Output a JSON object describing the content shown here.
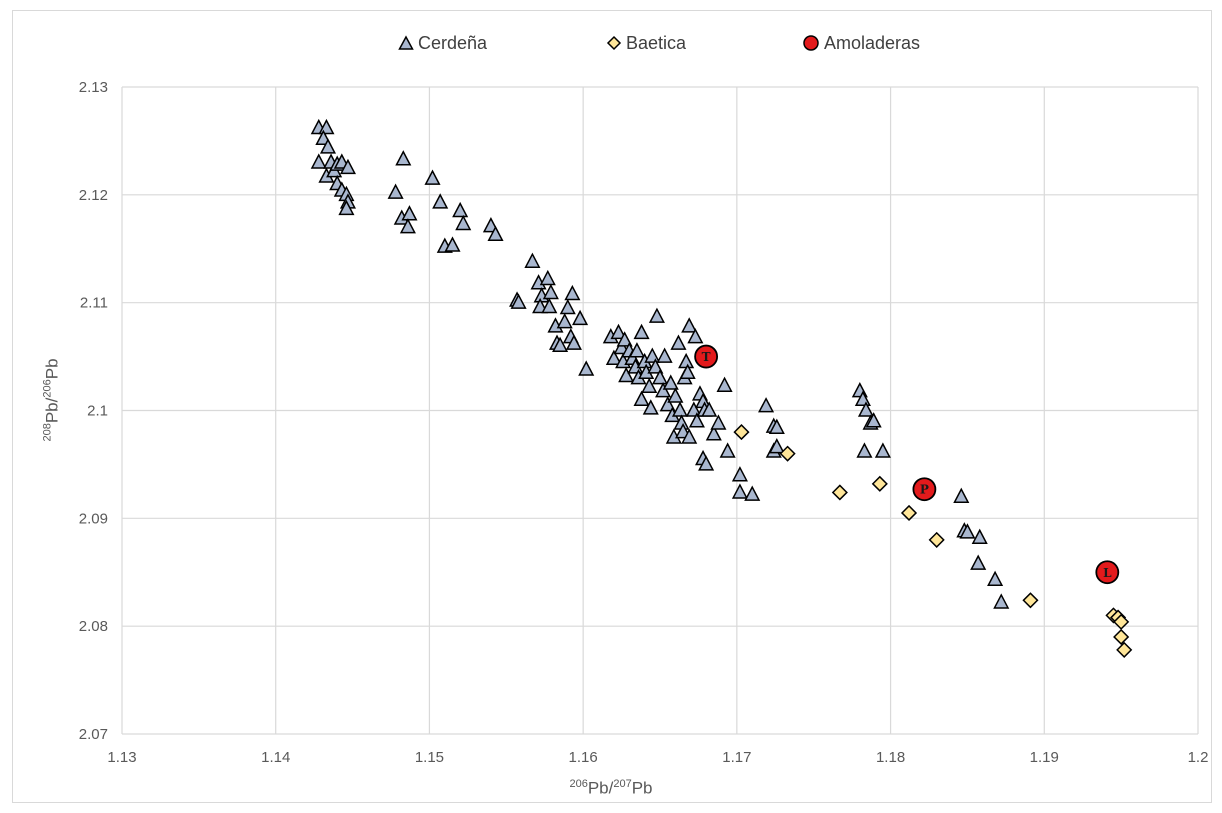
{
  "chart_data": {
    "type": "scatter",
    "title": "",
    "xlabel": {
      "sup1": "206",
      "base1": "Pb/",
      "sup2": "207",
      "base2": "Pb"
    },
    "ylabel": {
      "sup1": "208",
      "base1": "Pb/",
      "sup2": "206",
      "base2": "Pb"
    },
    "xlim": [
      1.13,
      1.2
    ],
    "ylim": [
      2.07,
      2.13
    ],
    "x_ticks": [
      "1.13",
      "1.14",
      "1.15",
      "1.16",
      "1.17",
      "1.18",
      "1.19",
      "1.2"
    ],
    "y_ticks": [
      "2.07",
      "2.08",
      "2.09",
      "2.1",
      "2.11",
      "2.12",
      "2.13"
    ],
    "grid": true,
    "legend_position": "top",
    "series": [
      {
        "name": "Cerdeña",
        "marker": "triangle",
        "color": "#a9b7cf",
        "points": [
          [
            1.1428,
            2.1262
          ],
          [
            1.1433,
            2.1262
          ],
          [
            1.1431,
            2.1252
          ],
          [
            1.1434,
            2.1244
          ],
          [
            1.1428,
            2.123
          ],
          [
            1.1436,
            2.123
          ],
          [
            1.1433,
            2.1217
          ],
          [
            1.1438,
            2.1222
          ],
          [
            1.144,
            2.1228
          ],
          [
            1.1443,
            2.123
          ],
          [
            1.1447,
            2.1225
          ],
          [
            1.144,
            2.121
          ],
          [
            1.1443,
            2.1204
          ],
          [
            1.1446,
            2.12
          ],
          [
            1.1447,
            2.1193
          ],
          [
            1.1446,
            2.1187
          ],
          [
            1.1483,
            2.1233
          ],
          [
            1.1478,
            2.1202
          ],
          [
            1.1482,
            2.1178
          ],
          [
            1.1487,
            2.1182
          ],
          [
            1.1486,
            2.117
          ],
          [
            1.1502,
            2.1215
          ],
          [
            1.1507,
            2.1193
          ],
          [
            1.151,
            2.1152
          ],
          [
            1.1515,
            2.1153
          ],
          [
            1.152,
            2.1185
          ],
          [
            1.1522,
            2.1173
          ],
          [
            1.154,
            2.1171
          ],
          [
            1.1543,
            2.1163
          ],
          [
            1.1557,
            2.1102
          ],
          [
            1.1558,
            2.11
          ],
          [
            1.1567,
            2.1138
          ],
          [
            1.1571,
            2.1118
          ],
          [
            1.1573,
            2.1106
          ],
          [
            1.1572,
            2.1096
          ],
          [
            1.1577,
            2.1122
          ],
          [
            1.1579,
            2.1109
          ],
          [
            1.1578,
            2.1096
          ],
          [
            1.1582,
            2.1078
          ],
          [
            1.1583,
            2.1062
          ],
          [
            1.1585,
            2.106
          ],
          [
            1.159,
            2.1095
          ],
          [
            1.1588,
            2.1082
          ],
          [
            1.1593,
            2.1108
          ],
          [
            1.1592,
            2.1068
          ],
          [
            1.1594,
            2.1062
          ],
          [
            1.1598,
            2.1085
          ],
          [
            1.1602,
            2.1038
          ],
          [
            1.1618,
            2.1068
          ],
          [
            1.162,
            2.1048
          ],
          [
            1.1623,
            2.1072
          ],
          [
            1.1625,
            2.1058
          ],
          [
            1.1627,
            2.1065
          ],
          [
            1.1626,
            2.1045
          ],
          [
            1.1628,
            2.1032
          ],
          [
            1.163,
            2.1055
          ],
          [
            1.1632,
            2.1048
          ],
          [
            1.1634,
            2.104
          ],
          [
            1.1636,
            2.103
          ],
          [
            1.1638,
            2.1072
          ],
          [
            1.1635,
            2.1055
          ],
          [
            1.164,
            2.1045
          ],
          [
            1.1641,
            2.1035
          ],
          [
            1.1638,
            2.101
          ],
          [
            1.1643,
            2.1022
          ],
          [
            1.1645,
            2.105
          ],
          [
            1.1647,
            2.104
          ],
          [
            1.1644,
            2.1002
          ],
          [
            1.1648,
            2.1087
          ],
          [
            1.165,
            2.103
          ],
          [
            1.1652,
            2.1018
          ],
          [
            1.1653,
            2.105
          ],
          [
            1.1655,
            2.1005
          ],
          [
            1.1657,
            2.1025
          ],
          [
            1.1658,
            2.0995
          ],
          [
            1.166,
            2.1013
          ],
          [
            1.1659,
            2.0975
          ],
          [
            1.1662,
            2.1062
          ],
          [
            1.1663,
            2.1
          ],
          [
            1.1664,
            2.0988
          ],
          [
            1.1666,
            2.103
          ],
          [
            1.1665,
            2.098
          ],
          [
            1.1667,
            2.1045
          ],
          [
            1.1668,
            2.1035
          ],
          [
            1.1669,
            2.1078
          ],
          [
            1.1669,
            2.0975
          ],
          [
            1.1672,
            2.1
          ],
          [
            1.1673,
            2.1068
          ],
          [
            1.1674,
            2.099
          ],
          [
            1.1676,
            2.1015
          ],
          [
            1.1678,
            2.1008
          ],
          [
            1.1679,
            2.1
          ],
          [
            1.1678,
            2.0955
          ],
          [
            1.168,
            2.095
          ],
          [
            1.1682,
            2.1
          ],
          [
            1.1685,
            2.0978
          ],
          [
            1.1688,
            2.0988
          ],
          [
            1.1692,
            2.1023
          ],
          [
            1.1694,
            2.0962
          ],
          [
            1.1702,
            2.094
          ],
          [
            1.1702,
            2.0924
          ],
          [
            1.171,
            2.0922
          ],
          [
            1.1719,
            2.1004
          ],
          [
            1.1724,
            2.0985
          ],
          [
            1.1726,
            2.0984
          ],
          [
            1.1724,
            2.0962
          ],
          [
            1.1726,
            2.0966
          ],
          [
            1.178,
            2.1018
          ],
          [
            1.1782,
            2.101
          ],
          [
            1.1784,
            2.1
          ],
          [
            1.1787,
            2.0988
          ],
          [
            1.1789,
            2.099
          ],
          [
            1.1783,
            2.0962
          ],
          [
            1.1795,
            2.0962
          ],
          [
            1.1846,
            2.092
          ],
          [
            1.1848,
            2.0888
          ],
          [
            1.185,
            2.0887
          ],
          [
            1.1858,
            2.0882
          ],
          [
            1.1857,
            2.0858
          ],
          [
            1.1868,
            2.0843
          ],
          [
            1.1872,
            2.0822
          ]
        ]
      },
      {
        "name": "Baetica",
        "marker": "diamond",
        "color": "#ffe699",
        "points": [
          [
            1.1703,
            2.098
          ],
          [
            1.1733,
            2.096
          ],
          [
            1.1767,
            2.0924
          ],
          [
            1.1793,
            2.0932
          ],
          [
            1.1812,
            2.0905
          ],
          [
            1.183,
            2.088
          ],
          [
            1.1891,
            2.0824
          ],
          [
            1.1945,
            2.081
          ],
          [
            1.1948,
            2.0808
          ],
          [
            1.195,
            2.0804
          ],
          [
            1.195,
            2.079
          ],
          [
            1.1952,
            2.0778
          ]
        ]
      },
      {
        "name": "Amoladeras",
        "marker": "circle",
        "color": "#e31a1c",
        "points": [
          [
            1.168,
            2.105,
            "T"
          ],
          [
            1.1822,
            2.0927,
            "P"
          ],
          [
            1.1941,
            2.085,
            "L"
          ]
        ]
      }
    ]
  }
}
